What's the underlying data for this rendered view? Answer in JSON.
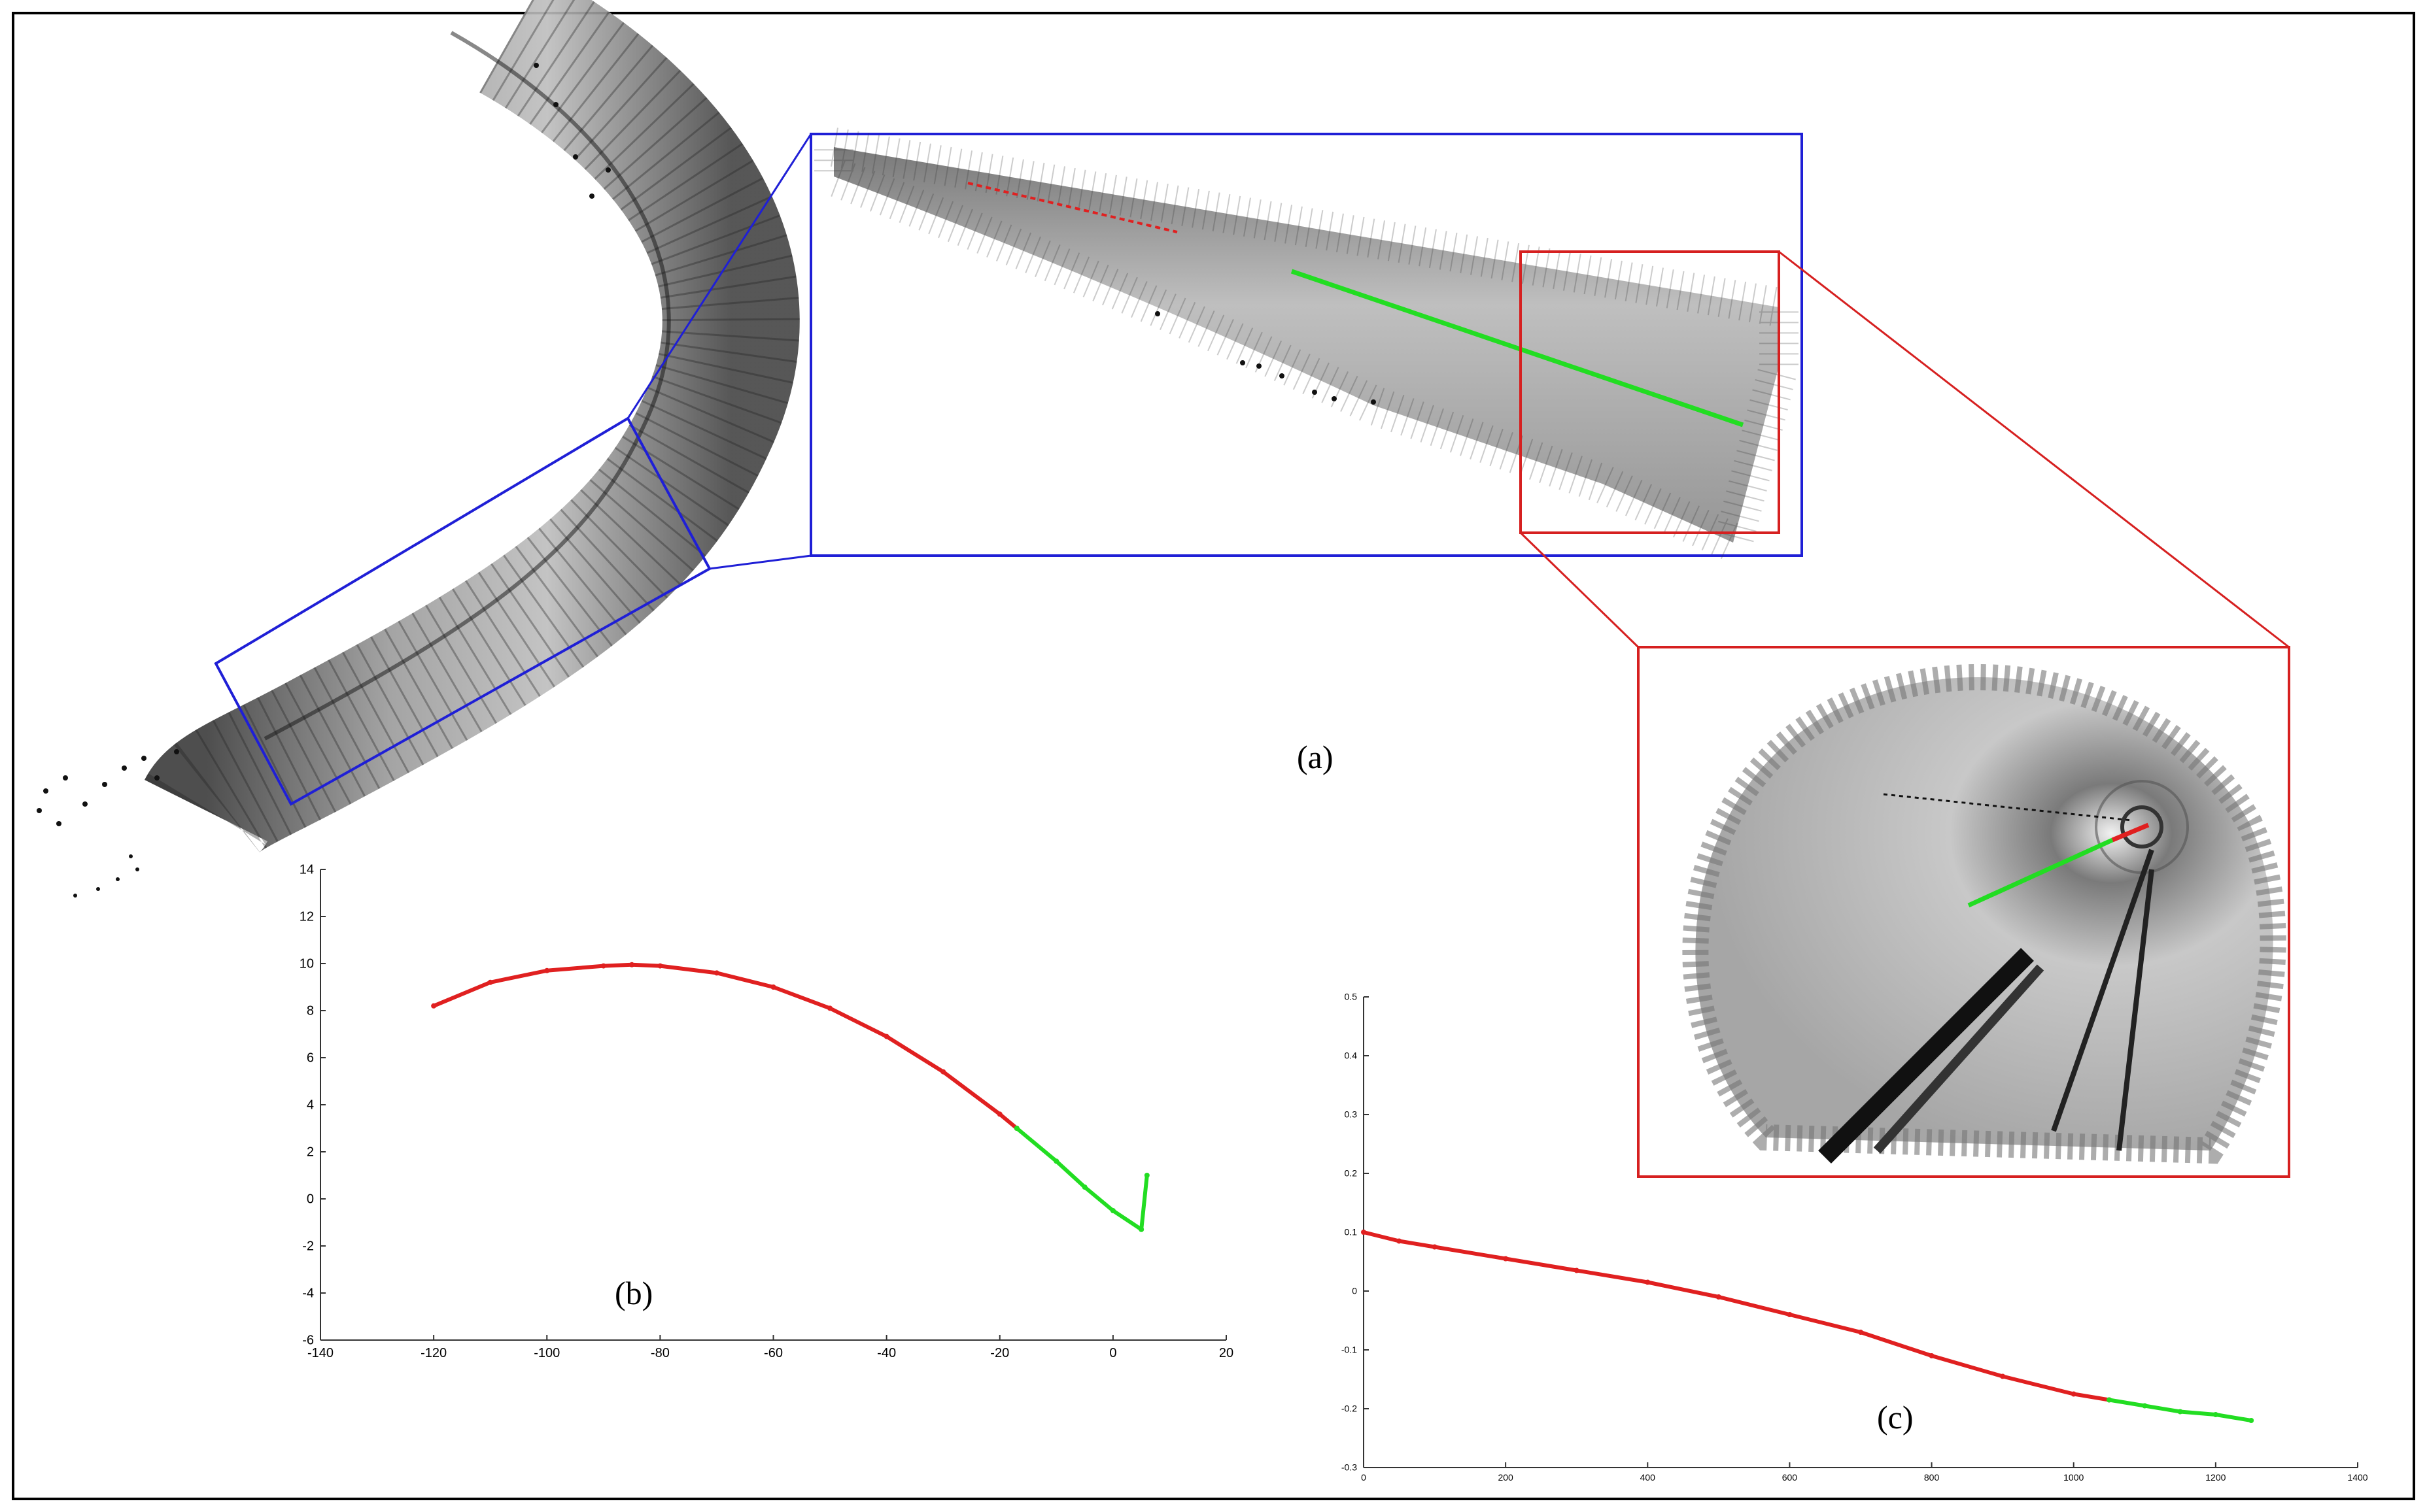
{
  "panel_labels": {
    "a": "(a)",
    "b": "(b)",
    "c": "(c)"
  },
  "colors": {
    "zoom_box_1": "#1f1fd6",
    "zoom_box_2": "#d62020",
    "segment_curve": "#e02020",
    "segment_straight": "#22dd22",
    "points": "#000000"
  },
  "chart_data": [
    {
      "panel": "b",
      "type": "scatter",
      "x_ticks": [
        "-140",
        "-120",
        "-100",
        "-80",
        "-60",
        "-40",
        "-20",
        "0",
        "20"
      ],
      "y_ticks": [
        "14",
        "12",
        "10",
        "8",
        "6",
        "4",
        "2",
        "0",
        "-2",
        "-4",
        "-6"
      ],
      "xlim": [
        -140,
        20
      ],
      "ylim": [
        -6,
        14
      ],
      "series": [
        {
          "color": "red",
          "x": [
            -120,
            -110,
            -100,
            -90,
            -85,
            -80,
            -70,
            -60,
            -50,
            -40,
            -30,
            -20,
            -17
          ],
          "y": [
            8.2,
            9.2,
            9.7,
            9.9,
            9.95,
            9.9,
            9.6,
            9.0,
            8.1,
            6.9,
            5.4,
            3.6,
            3.0
          ]
        },
        {
          "color": "green",
          "x": [
            -17,
            -10,
            -5,
            0,
            5,
            6
          ],
          "y": [
            3.0,
            1.6,
            0.5,
            -0.5,
            -1.3,
            1.0
          ]
        }
      ]
    },
    {
      "panel": "c",
      "type": "scatter",
      "x_ticks": [
        "0",
        "200",
        "400",
        "600",
        "800",
        "1000",
        "1200",
        "1400"
      ],
      "y_ticks": [
        "0.5",
        "0.4",
        "0.3",
        "0.2",
        "0.1",
        "0",
        "-0.1",
        "-0.2",
        "-0.3"
      ],
      "xlim": [
        0,
        1400
      ],
      "ylim": [
        -0.3,
        0.5
      ],
      "series": [
        {
          "color": "red",
          "x": [
            0,
            50,
            100,
            200,
            300,
            400,
            500,
            600,
            700,
            800,
            900,
            1000,
            1050
          ],
          "y": [
            0.1,
            0.085,
            0.075,
            0.055,
            0.035,
            0.015,
            -0.01,
            -0.04,
            -0.07,
            -0.11,
            -0.145,
            -0.175,
            -0.185
          ]
        },
        {
          "color": "green",
          "x": [
            1050,
            1100,
            1150,
            1200,
            1250
          ],
          "y": [
            -0.185,
            -0.195,
            -0.205,
            -0.21,
            -0.22
          ]
        }
      ]
    }
  ]
}
